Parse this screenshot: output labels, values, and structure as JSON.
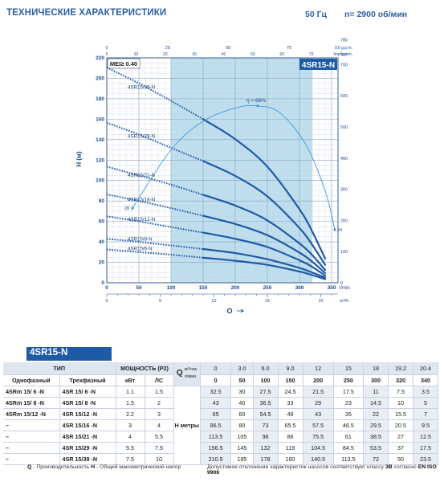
{
  "header": {
    "title": "ТЕХНИЧЕСКИЕ ХАРАКТЕРИСТИКИ",
    "frequency": "50 Гц",
    "speed": "n= 2900 об/мин"
  },
  "colors": {
    "curve": "#1f5aa6",
    "efficiency": "#3a9bd9",
    "band": "#a9d4ea",
    "tab": "#1f5aa6"
  },
  "chart_data": {
    "type": "line",
    "model_label": "4SR15-N",
    "mei_label": "MEI≥ 0.40",
    "y_axis_label": "H (м)",
    "y_right_unit": "feet",
    "x_axis_label": "Q",
    "x_unit_lmin": "l/min",
    "x_unit_m3h": "m³/h",
    "top_unit_us": "US g.p.m.",
    "top_unit_imp": "Imp g.p.m.",
    "efficiency_label": "η = 66%",
    "eff_start_label": "28",
    "eff_end_label": "24",
    "xlim": [
      0,
      360
    ],
    "ylim": [
      0,
      220
    ],
    "y_ticks": [
      0,
      20,
      40,
      60,
      80,
      100,
      120,
      140,
      160,
      180,
      200,
      220
    ],
    "x_ticks_lmin": [
      0,
      50,
      100,
      150,
      200,
      250,
      300,
      350
    ],
    "x_ticks_m3h": [
      0,
      5,
      10,
      15,
      20
    ],
    "x_ticks_us": [
      0,
      25,
      50,
      75
    ],
    "x_ticks_imp": [
      0,
      10,
      20,
      30,
      40,
      50,
      60,
      70
    ],
    "y_ticks_feet": [
      0,
      100,
      200,
      300,
      400,
      500,
      600,
      700
    ],
    "y_ticks_feet_top": 780,
    "band_lmin": [
      100,
      320
    ],
    "flow_lmin": [
      0,
      50,
      100,
      150,
      200,
      250,
      300,
      320,
      340
    ],
    "series": [
      {
        "name": "4SR15/39-N",
        "values": [
          210.5,
          195,
          178,
          160,
          140.5,
          113.5,
          72,
          50,
          23.5
        ]
      },
      {
        "name": "4SR15/29-N",
        "values": [
          156.5,
          145,
          132,
          119,
          104.5,
          84.5,
          53.5,
          37,
          17.5
        ]
      },
      {
        "name": "4SR15/21-N",
        "values": [
          113.5,
          105,
          96,
          86,
          75.5,
          61,
          38.5,
          27,
          12.5
        ]
      },
      {
        "name": "4SR15/16-N",
        "values": [
          86.5,
          80,
          73,
          65.5,
          57.5,
          46.5,
          29.5,
          20.5,
          9.5
        ]
      },
      {
        "name": "4SR15/12-N",
        "values": [
          65,
          60,
          54.5,
          49,
          43,
          35,
          22,
          15.5,
          7
        ]
      },
      {
        "name": "4SR15/8-N",
        "values": [
          43,
          40,
          36.5,
          33,
          29,
          23,
          14.5,
          10,
          5
        ]
      },
      {
        "name": "4SR15/6-N",
        "values": [
          32.5,
          30,
          27.5,
          24.5,
          21.5,
          17.5,
          11,
          7.5,
          3.5
        ]
      }
    ],
    "efficiency_curve": [
      [
        40,
        73
      ],
      [
        100,
        130
      ],
      [
        150,
        158
      ],
      [
        200,
        171
      ],
      [
        235,
        173
      ],
      [
        270,
        166
      ],
      [
        310,
        135
      ],
      [
        340,
        90
      ],
      [
        355,
        52
      ]
    ]
  },
  "table": {
    "model": "4SR15-N",
    "col_type": "ТИП",
    "col_single": "Однофазный",
    "col_three": "Трехфазный",
    "col_power": "МОЩНОСТЬ (P2)",
    "col_kw": "кВт",
    "col_hp": "ЛС",
    "q_label": "Q",
    "unit_m3h": "м³/час",
    "unit_lmin": "л/мин",
    "h_label": "H метры",
    "flow_m3h": [
      "0",
      "3.0",
      "6.0",
      "9.0",
      "12",
      "15",
      "18",
      "19.2",
      "20.4"
    ],
    "flow_lmin": [
      "0",
      "50",
      "100",
      "150",
      "200",
      "250",
      "300",
      "320",
      "340"
    ],
    "rows": [
      {
        "single": "4SRm 15/ 6  -N",
        "three": "4SR 15/ 6  -N",
        "kw": "1.1",
        "hp": "1.5",
        "h": [
          "32.5",
          "30",
          "27.5",
          "24.5",
          "21.5",
          "17.5",
          "11",
          "7.5",
          "3.5"
        ]
      },
      {
        "single": "4SRm 15/ 8  -N",
        "three": "4SR 15/ 8  -N",
        "kw": "1.5",
        "hp": "2",
        "h": [
          "43",
          "40",
          "36.5",
          "33",
          "29",
          "23",
          "14.5",
          "10",
          "5"
        ]
      },
      {
        "single": "4SRm 15/12 -N",
        "three": "4SR 15/12 -N",
        "kw": "2.2",
        "hp": "3",
        "h": [
          "65",
          "60",
          "54.5",
          "49",
          "43",
          "35",
          "22",
          "15.5",
          "7"
        ]
      },
      {
        "single": "–",
        "three": "4SR 15/16 -N",
        "kw": "3",
        "hp": "4",
        "h": [
          "86.5",
          "80",
          "73",
          "65.5",
          "57.5",
          "46.5",
          "29.5",
          "20.5",
          "9.5"
        ]
      },
      {
        "single": "–",
        "three": "4SR 15/21 -N",
        "kw": "4",
        "hp": "5.5",
        "h": [
          "113.5",
          "105",
          "96",
          "86",
          "75.5",
          "61",
          "38.5",
          "27",
          "12.5"
        ]
      },
      {
        "single": "–",
        "three": "4SR 15/29 -N",
        "kw": "5.5",
        "hp": "7.5",
        "h": [
          "156.5",
          "145",
          "132",
          "119",
          "104.5",
          "84.5",
          "53.5",
          "37",
          "17.5"
        ]
      },
      {
        "single": "–",
        "three": "4SR 15/39 -N",
        "kw": "7.5",
        "hp": "10",
        "h": [
          "210.5",
          "195",
          "178",
          "160",
          "140.5",
          "113.5",
          "72",
          "50",
          "23.5"
        ]
      }
    ]
  },
  "footer": {
    "q_key": "Q",
    "q_text": " - Производительность  ",
    "h_key": "H",
    "h_text": " - Общий манометрический напор",
    "tolerance_text": "Допустимое отклонение характеристик насосов соответствует классу ",
    "tolerance_class": "3B",
    "tolerance_mid": " согласно ",
    "tolerance_std": "EN ISO 9906"
  }
}
